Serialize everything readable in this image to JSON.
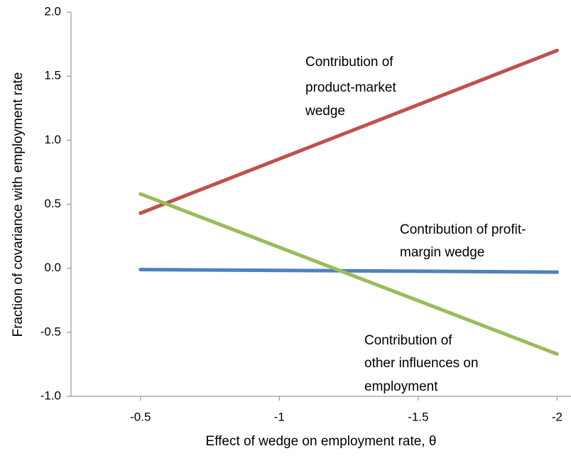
{
  "chart_data": {
    "type": "line",
    "x_label": "Effect of wedge on employment rate, θ",
    "y_label": "Fraction of covariance with employment rate",
    "x": [
      -0.5,
      -2
    ],
    "series": [
      {
        "color": "#c0504d",
        "values": [
          0.43,
          1.7
        ]
      },
      {
        "color": "#4f81bd",
        "values": [
          -0.01,
          -0.03
        ]
      },
      {
        "color": "#9bbb59",
        "values": [
          0.58,
          -0.67
        ]
      }
    ],
    "xlim": [
      -0.25,
      -2.05
    ],
    "xticks": [
      -0.5,
      -1,
      -1.5,
      -2
    ],
    "ylim": [
      -1.0,
      2.0
    ],
    "yticks": [
      {
        "value": -1.0,
        "label": "-1.0"
      },
      -0.5,
      {
        "value": 0.0,
        "label": "0.0"
      },
      0.5,
      {
        "value": 1.0,
        "label": "1.0"
      },
      1.5,
      {
        "value": 2.0,
        "label": "2.0"
      }
    ],
    "annotations": [
      [
        "Contribution of",
        "product-market",
        "wedge"
      ],
      [
        "Contribution of profit-",
        "margin wedge"
      ],
      [
        "Contribution of",
        "other influences on",
        "employment"
      ]
    ]
  }
}
